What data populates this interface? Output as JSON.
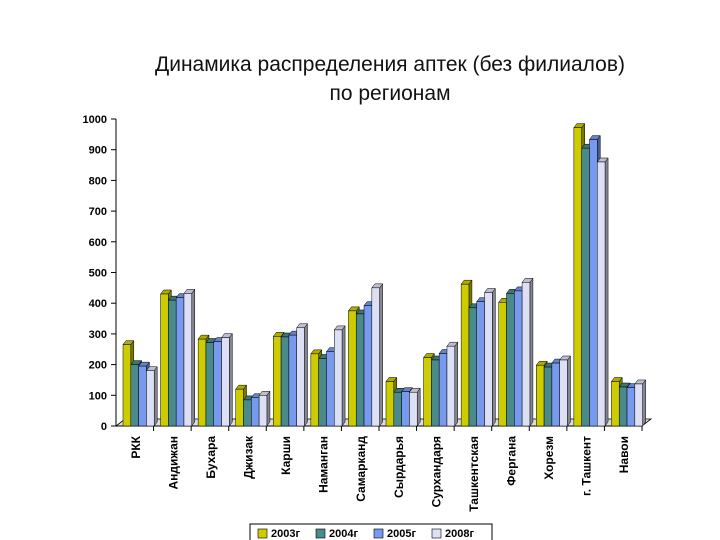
{
  "chart_data": {
    "type": "bar",
    "title": "Динамика распределения аптек (без филиалов) по регионам",
    "categories": [
      "РКК",
      "Андижан",
      "Бухара",
      "Джизак",
      "Карши",
      "Наманган",
      "Самарканд",
      "Сырдарья",
      "Сурхандаря",
      "Ташкентская",
      "Фергана",
      "Хорезм",
      "г. Ташкент",
      "Навои"
    ],
    "series": [
      {
        "name": "2003г",
        "color": "#cccc00",
        "values": [
          265,
          430,
          283,
          120,
          292,
          235,
          375,
          145,
          223,
          462,
          403,
          198,
          972,
          145
        ]
      },
      {
        "name": "2004г",
        "color": "#4a8a8a",
        "values": [
          200,
          410,
          272,
          85,
          290,
          220,
          365,
          110,
          215,
          385,
          432,
          192,
          905,
          127
        ]
      },
      {
        "name": "2005г",
        "color": "#7799ee",
        "values": [
          195,
          418,
          275,
          92,
          296,
          242,
          392,
          112,
          236,
          405,
          440,
          205,
          933,
          125
        ]
      },
      {
        "name": "2008г",
        "color": "#dde0f5",
        "values": [
          180,
          432,
          288,
          100,
          320,
          313,
          450,
          110,
          260,
          435,
          468,
          215,
          860,
          137
        ]
      }
    ],
    "yticks": [
      "0",
      "100",
      "200",
      "300",
      "400",
      "500",
      "600",
      "700",
      "800",
      "900",
      "1000"
    ],
    "ylim": [
      0,
      1000
    ],
    "legend_position": "bottom",
    "grid": false
  }
}
